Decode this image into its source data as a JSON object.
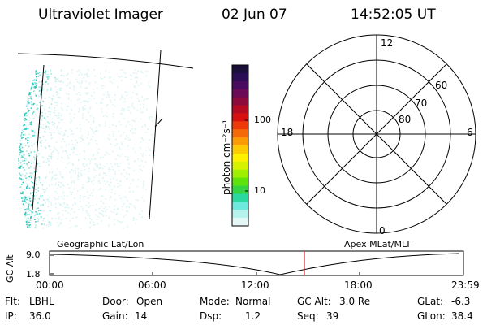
{
  "header": {
    "instrument": "Ultraviolet Imager",
    "date": "02 Jun 07",
    "time": "14:52:05 UT"
  },
  "colorbar": {
    "unit_label": "photon cm⁻²s⁻¹",
    "ticks": [
      "100",
      "10"
    ],
    "colors": [
      "#1a0f3a",
      "#2a0d55",
      "#4a0a5e",
      "#6b0a57",
      "#8d0a3d",
      "#b50a22",
      "#d81010",
      "#ee3a0a",
      "#f56a08",
      "#fa9a05",
      "#fccb03",
      "#fff000",
      "#d6f200",
      "#9ef000",
      "#5fe30a",
      "#33d640",
      "#2ad8a0",
      "#6fe8de",
      "#b6f2ee",
      "#e5f8f7"
    ]
  },
  "polar": {
    "mlt_labels": {
      "top": "12",
      "left": "18",
      "right": "6",
      "bottom": "0"
    },
    "lat_labels": [
      "60",
      "70",
      "80"
    ]
  },
  "timeline": {
    "left_label": "Geographic Lat/Lon",
    "right_label": "Apex  MLat/MLT",
    "yaxis_title": "GC Alt",
    "y_ticks": [
      "9.0",
      "1.8"
    ],
    "x_ticks": [
      "00:00",
      "06:00",
      "12:00",
      "18:00",
      "23:59"
    ]
  },
  "status": {
    "row1": [
      {
        "key": "Flt:",
        "value": "LBHL"
      },
      {
        "key": "Door:",
        "value": "Open"
      },
      {
        "key": "Mode:",
        "value": "Normal"
      },
      {
        "key": "GC Alt:",
        "value": "3.0 Re"
      },
      {
        "key": "GLat:",
        "value": "-6.3"
      }
    ],
    "row2": [
      {
        "key": "IP:",
        "value": "36.0"
      },
      {
        "key": "Gain:",
        "value": "14"
      },
      {
        "key": "Dsp:",
        "value": "1.2"
      },
      {
        "key": "Seq:",
        "value": "39"
      },
      {
        "key": "GLon:",
        "value": "38.4"
      }
    ]
  }
}
